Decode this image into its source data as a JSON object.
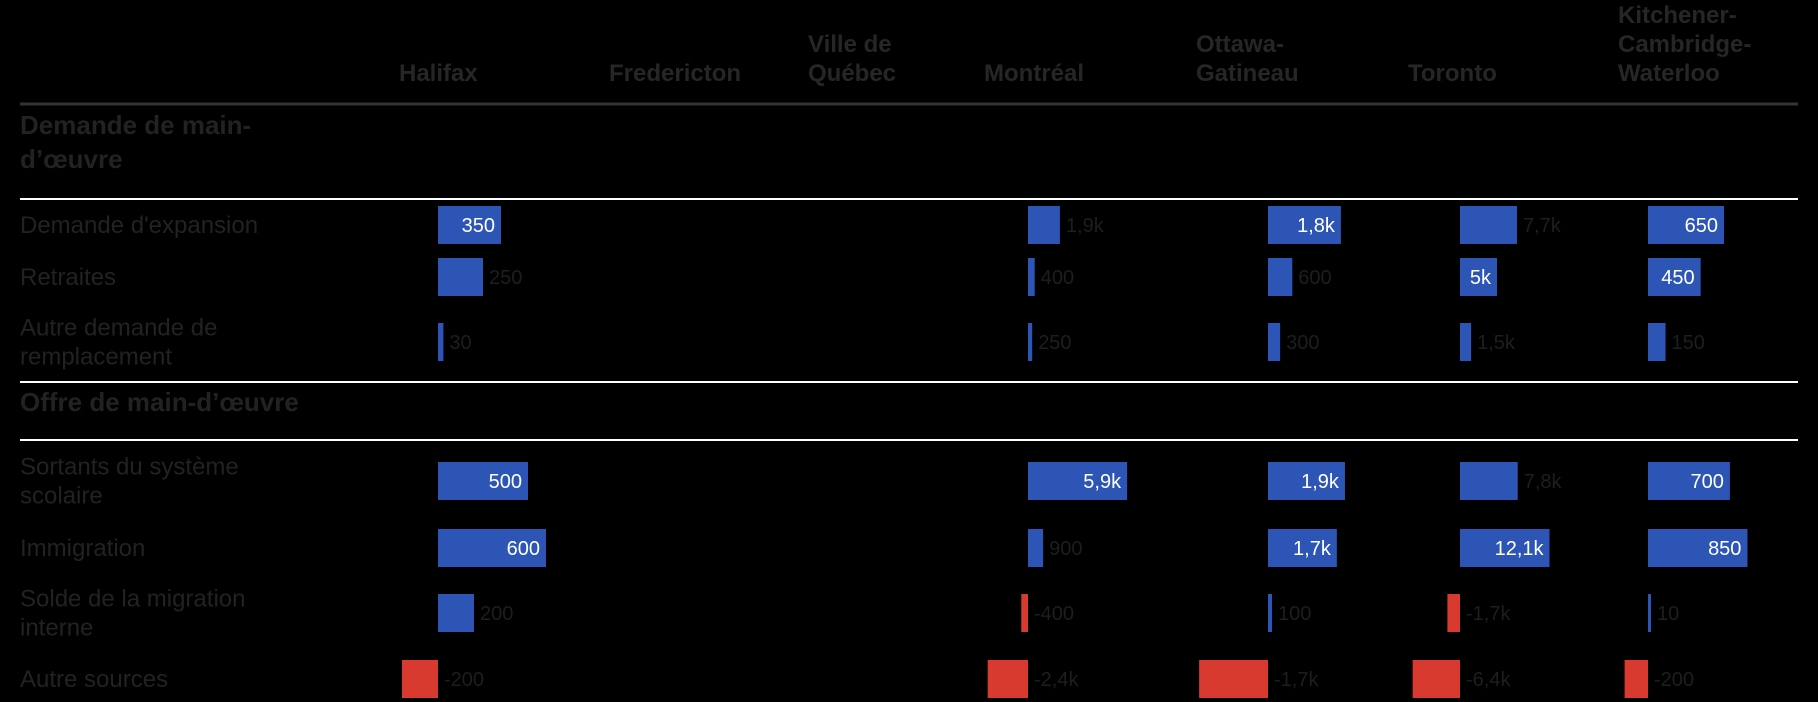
{
  "chart_data": {
    "type": "table",
    "columns": [
      "Halifax",
      "Fredericton",
      "Ville de Québec",
      "Montréal",
      "Ottawa-Gatineau",
      "Toronto",
      "Kitchener-Cambridge-Waterloo"
    ],
    "sections": [
      {
        "title": "Demande de main-d’œuvre",
        "rows": [
          {
            "label": "Demande d'expansion",
            "values": [
              350,
              null,
              null,
              1900,
              1800,
              7700,
              650
            ],
            "display": [
              "350",
              "",
              "",
              "1,9k",
              "1,8k",
              "7,7k",
              "650"
            ]
          },
          {
            "label": "Retraites",
            "values": [
              250,
              null,
              null,
              400,
              600,
              5000,
              450
            ],
            "display": [
              "250",
              "",
              "",
              "400",
              "600",
              "5k",
              "450"
            ]
          },
          {
            "label": "Autre demande de remplacement",
            "values": [
              30,
              null,
              null,
              250,
              300,
              1500,
              150
            ],
            "display": [
              "30",
              "",
              "",
              "250",
              "300",
              "1,5k",
              "150"
            ]
          }
        ]
      },
      {
        "title": "Offre de main-d’œuvre",
        "rows": [
          {
            "label": "Sortants du système scolaire",
            "values": [
              500,
              null,
              null,
              5900,
              1900,
              7800,
              700
            ],
            "display": [
              "500",
              "",
              "",
              "5,9k",
              "1,9k",
              "7,8k",
              "700"
            ]
          },
          {
            "label": "Immigration",
            "values": [
              600,
              null,
              null,
              900,
              1700,
              12100,
              850
            ],
            "display": [
              "600",
              "",
              "",
              "900",
              "1,7k",
              "12,1k",
              "850"
            ]
          },
          {
            "label": "Solde de la migration interne",
            "values": [
              200,
              null,
              null,
              -400,
              100,
              -1700,
              10
            ],
            "display": [
              "200",
              "",
              "",
              "-400",
              "100",
              "-1,7k",
              "10"
            ]
          },
          {
            "label": "Autre sources",
            "values": [
              -200,
              null,
              null,
              -2400,
              -1700,
              -6400,
              -200
            ],
            "display": [
              "-200",
              "",
              "",
              "-2,4k",
              "-1,7k",
              "-6,4k",
              "-200"
            ]
          }
        ]
      }
    ],
    "colors": {
      "positive": "#2c55b5",
      "negative": "#d93a2f"
    }
  }
}
